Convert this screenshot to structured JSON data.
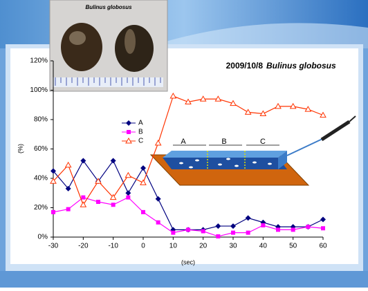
{
  "chart_data": {
    "type": "line",
    "title": "2009/10/8",
    "title_italic": "Bulinus globosus",
    "photo_caption": "Bulinus globosus",
    "diagram_labels": [
      "A",
      "B",
      "C"
    ],
    "x_label": "(sec)",
    "y_label": "(%)",
    "x": [
      -30,
      -25,
      -20,
      -15,
      -10,
      -5,
      0,
      5,
      10,
      15,
      20,
      25,
      30,
      35,
      40,
      45,
      50,
      55,
      60
    ],
    "xlim": [
      -30,
      60
    ],
    "xticks": [
      -30,
      -20,
      -10,
      0,
      10,
      20,
      30,
      40,
      50,
      60
    ],
    "ylim": [
      0,
      120
    ],
    "yticks": [
      {
        "value": 0,
        "label": "0%"
      },
      {
        "value": 20,
        "label": "20%"
      },
      {
        "value": 40,
        "label": "40%"
      },
      {
        "value": 60,
        "label": "60%"
      },
      {
        "value": 80,
        "label": "80%"
      },
      {
        "value": 100,
        "label": "100%"
      },
      {
        "value": 120,
        "label": "120%"
      }
    ],
    "grid": false,
    "series": [
      {
        "name": "A",
        "color": "#000080",
        "marker": "diamond",
        "values": [
          45,
          33,
          52,
          38,
          52,
          30,
          47,
          26,
          5,
          5,
          5,
          7.5,
          7.5,
          13,
          10,
          7,
          7,
          7,
          12
        ]
      },
      {
        "name": "B",
        "color": "#ff00ff",
        "marker": "square",
        "values": [
          17,
          19,
          27,
          24,
          22,
          27,
          17,
          10,
          3,
          5,
          4,
          0.5,
          3,
          3,
          8,
          5,
          5,
          7,
          6
        ]
      },
      {
        "name": "C",
        "color": "#ff3300",
        "marker": "triangle",
        "values": [
          38,
          49,
          22,
          38,
          27,
          42,
          37,
          64,
          96,
          92,
          94,
          94,
          91,
          85,
          84,
          89,
          89,
          87,
          83
        ]
      }
    ]
  }
}
